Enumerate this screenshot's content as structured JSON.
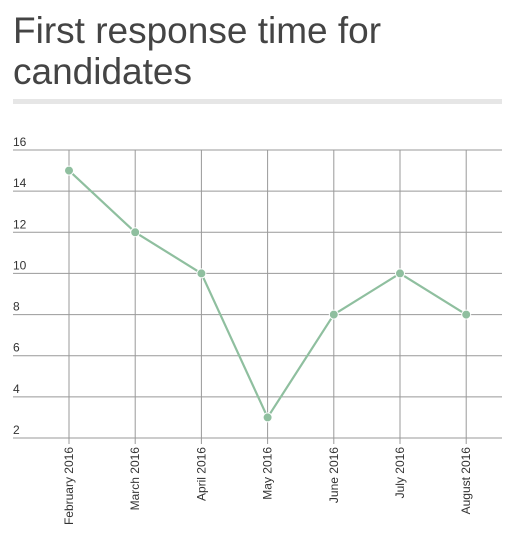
{
  "title": "First response time for candidates",
  "colors": {
    "line": "#8fbf9f",
    "point": "#8fbf9f",
    "grid": "#999999",
    "divider": "#e6e6e6",
    "title": "#444444"
  },
  "chart_data": {
    "type": "line",
    "title": "First response time for candidates",
    "xlabel": "",
    "ylabel": "",
    "categories": [
      "February 2016",
      "March 2016",
      "April 2016",
      "May 2016",
      "June 2016",
      "July 2016",
      "August 2016"
    ],
    "series": [
      {
        "values": [
          15,
          12,
          10,
          3,
          8,
          10,
          8
        ]
      }
    ],
    "yticks": [
      2,
      4,
      6,
      8,
      10,
      12,
      14,
      16
    ],
    "ylim": [
      2,
      16
    ],
    "grid": true,
    "legend": "none"
  }
}
